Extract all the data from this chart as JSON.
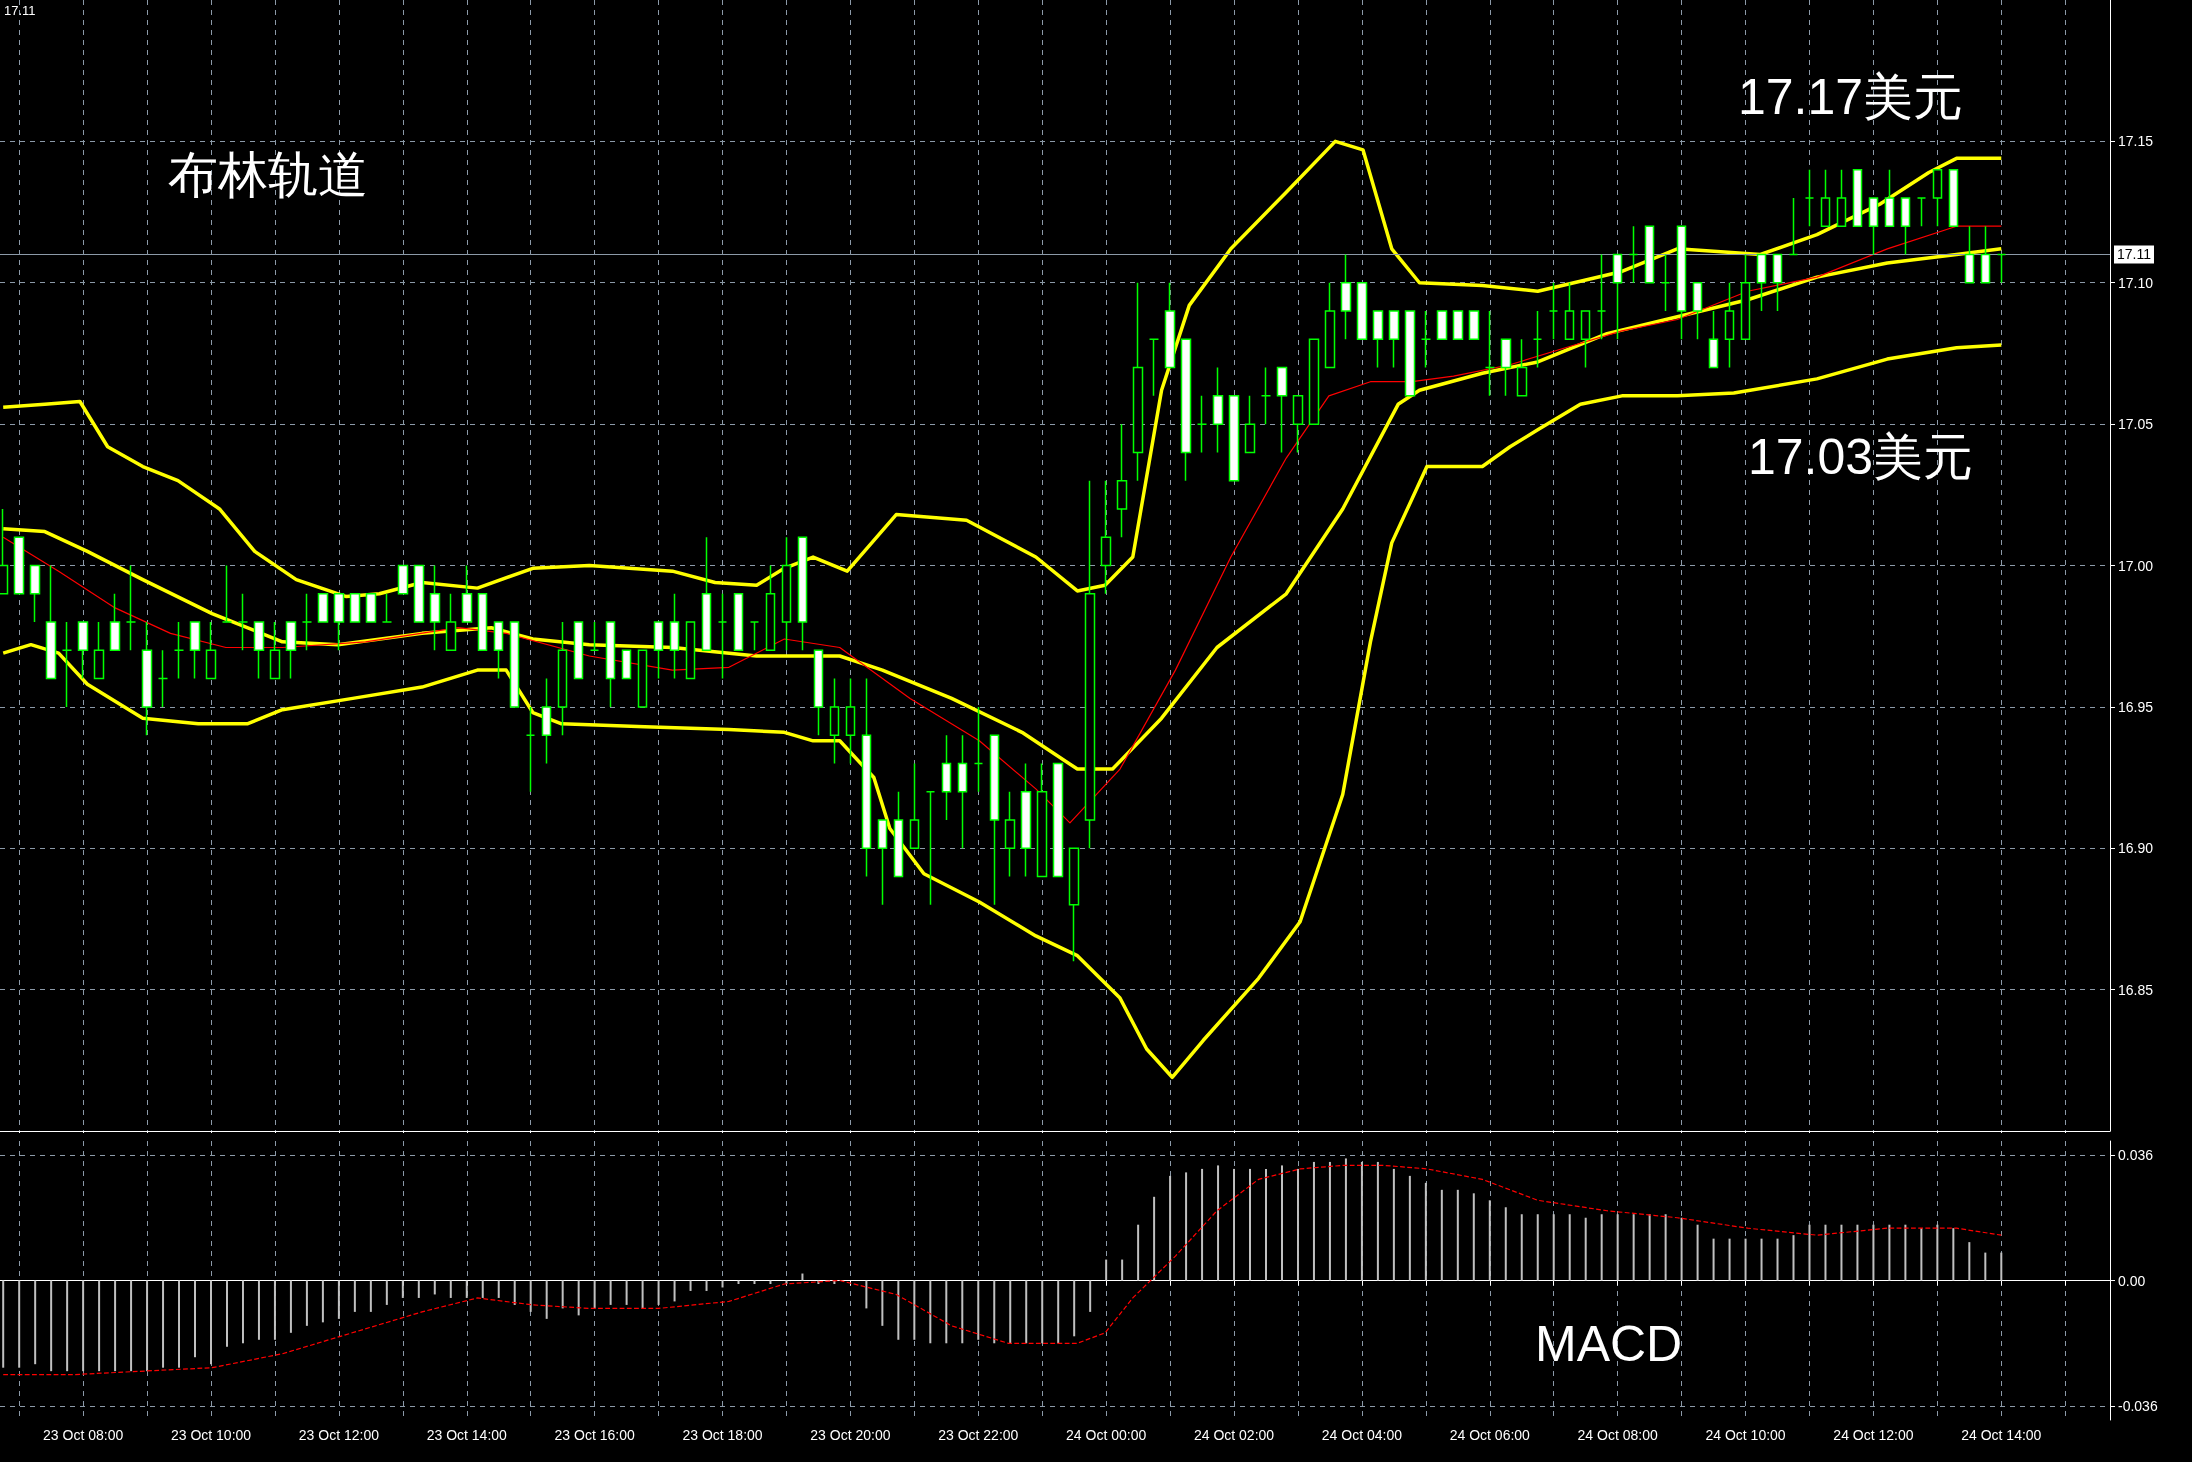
{
  "chart_data": [
    {
      "type": "candlestick",
      "color": "#00ff00",
      "x": [
        "--10-23T06:45",
        "--10-23T07:00",
        "--10-23T07:15",
        "--10-23T07:30",
        "--10-23T07:45",
        "--10-23T08:00",
        "--10-23T08:15",
        "--10-23T08:30",
        "--10-23T08:45",
        "--10-23T09:00",
        "--10-23T09:15",
        "--10-23T09:30",
        "--10-23T09:45",
        "--10-23T10:00",
        "--10-23T10:15",
        "--10-23T10:30",
        "--10-23T10:45",
        "--10-23T11:00",
        "--10-23T11:15",
        "--10-23T11:30",
        "--10-23T11:45",
        "--10-23T12:00",
        "--10-23T12:15",
        "--10-23T12:30",
        "--10-23T12:45",
        "--10-23T13:00",
        "--10-23T13:15",
        "--10-23T13:30",
        "--10-23T13:45",
        "--10-23T14:00",
        "--10-23T14:15",
        "--10-23T14:30",
        "--10-23T14:45",
        "--10-23T15:00",
        "--10-23T15:15",
        "--10-23T15:30",
        "--10-23T15:45",
        "--10-23T16:00",
        "--10-23T16:15",
        "--10-23T16:30",
        "--10-23T16:45",
        "--10-23T17:00",
        "--10-23T17:15",
        "--10-23T17:30",
        "--10-23T17:45",
        "--10-23T18:00",
        "--10-23T18:15",
        "--10-23T18:30",
        "--10-23T18:45",
        "--10-23T19:00",
        "--10-23T19:15",
        "--10-23T19:30",
        "--10-23T19:45",
        "--10-23T20:00",
        "--10-23T20:15",
        "--10-23T20:30",
        "--10-23T20:45",
        "--10-23T21:00",
        "--10-23T21:15",
        "--10-23T21:30",
        "--10-23T21:45",
        "--10-23T22:00",
        "--10-23T22:15",
        "--10-23T22:30",
        "--10-23T22:45",
        "--10-23T23:00",
        "--10-23T23:15",
        "--10-23T23:30",
        "--10-23T23:45",
        "--10-24T00:00",
        "--10-24T00:15",
        "--10-24T00:30",
        "--10-24T00:45",
        "--10-24T01:00",
        "--10-24T01:15",
        "--10-24T01:30",
        "--10-24T01:45",
        "--10-24T02:00",
        "--10-24T02:15",
        "--10-24T02:30",
        "--10-24T02:45",
        "--10-24T03:00",
        "--10-24T03:15",
        "--10-24T03:30",
        "--10-24T03:45",
        "--10-24T04:00",
        "--10-24T04:15",
        "--10-24T04:30",
        "--10-24T04:45",
        "--10-24T05:00",
        "--10-24T05:15",
        "--10-24T05:30",
        "--10-24T05:45",
        "--10-24T06:00",
        "--10-24T06:15",
        "--10-24T06:30",
        "--10-24T06:45",
        "--10-24T07:00",
        "--10-24T07:15",
        "--10-24T07:30",
        "--10-24T07:45",
        "--10-24T08:00",
        "--10-24T08:15",
        "--10-24T08:30",
        "--10-24T08:45",
        "--10-24T09:00",
        "--10-24T09:15",
        "--10-24T09:30",
        "--10-24T09:45",
        "--10-24T10:00",
        "--10-24T10:15",
        "--10-24T10:30",
        "--10-24T10:45",
        "--10-24T11:00",
        "--10-24T11:15",
        "--10-24T11:30",
        "--10-24T11:45",
        "--10-24T12:00",
        "--10-24T12:15",
        "--10-24T12:30",
        "--10-24T12:45",
        "--10-24T13:00",
        "--10-24T13:15",
        "--10-24T13:30",
        "--10-24T13:45",
        "--10-24T14:00"
      ],
      "ohlc": [
        [
          16.99,
          17.02,
          16.99,
          17.0
        ],
        [
          17.01,
          17.01,
          16.99,
          16.99
        ],
        [
          17.0,
          17.0,
          16.98,
          16.99
        ],
        [
          16.98,
          17.0,
          16.96,
          16.96
        ],
        [
          16.97,
          16.98,
          16.95,
          16.97
        ],
        [
          16.98,
          16.98,
          16.96,
          16.97
        ],
        [
          16.96,
          16.98,
          16.96,
          16.97
        ],
        [
          16.98,
          16.99,
          16.97,
          16.97
        ],
        [
          16.98,
          17.0,
          16.97,
          16.98
        ],
        [
          16.97,
          16.98,
          16.94,
          16.95
        ],
        [
          16.96,
          16.97,
          16.95,
          16.96
        ],
        [
          16.97,
          16.98,
          16.96,
          16.97
        ],
        [
          16.98,
          16.98,
          16.96,
          16.97
        ],
        [
          16.96,
          16.98,
          16.96,
          16.97
        ],
        [
          16.98,
          17.0,
          16.98,
          16.98
        ],
        [
          16.98,
          16.99,
          16.97,
          16.98
        ],
        [
          16.98,
          16.98,
          16.96,
          16.97
        ],
        [
          16.96,
          16.98,
          16.96,
          16.97
        ],
        [
          16.98,
          16.98,
          16.96,
          16.97
        ],
        [
          16.98,
          16.99,
          16.97,
          16.98
        ],
        [
          16.99,
          16.99,
          16.98,
          16.98
        ],
        [
          16.99,
          16.99,
          16.97,
          16.98
        ],
        [
          16.99,
          16.99,
          16.98,
          16.98
        ],
        [
          16.99,
          16.99,
          16.98,
          16.98
        ],
        [
          16.98,
          16.99,
          16.98,
          16.98
        ],
        [
          17.0,
          17.0,
          16.99,
          16.99
        ],
        [
          17.0,
          17.0,
          16.98,
          16.98
        ],
        [
          16.99,
          17.0,
          16.97,
          16.98
        ],
        [
          16.97,
          16.99,
          16.97,
          16.98
        ],
        [
          16.99,
          17.0,
          16.98,
          16.98
        ],
        [
          16.99,
          16.99,
          16.97,
          16.97
        ],
        [
          16.98,
          16.98,
          16.96,
          16.97
        ],
        [
          16.98,
          16.98,
          16.95,
          16.95
        ],
        [
          16.94,
          16.95,
          16.92,
          16.94
        ],
        [
          16.95,
          16.96,
          16.93,
          16.94
        ],
        [
          16.95,
          16.98,
          16.94,
          16.97
        ],
        [
          16.98,
          16.98,
          16.96,
          16.96
        ],
        [
          16.97,
          16.98,
          16.97,
          16.97
        ],
        [
          16.98,
          16.98,
          16.95,
          16.96
        ],
        [
          16.97,
          16.97,
          16.96,
          16.96
        ],
        [
          16.95,
          16.97,
          16.95,
          16.97
        ],
        [
          16.98,
          16.98,
          16.96,
          16.97
        ],
        [
          16.98,
          16.99,
          16.96,
          16.97
        ],
        [
          16.96,
          16.98,
          16.96,
          16.98
        ],
        [
          16.99,
          17.01,
          16.97,
          16.97
        ],
        [
          16.98,
          16.99,
          16.96,
          16.98
        ],
        [
          16.99,
          16.99,
          16.97,
          16.97
        ],
        [
          16.98,
          16.98,
          16.97,
          16.98
        ],
        [
          16.97,
          17.0,
          16.97,
          16.99
        ],
        [
          16.98,
          17.01,
          16.97,
          17.0
        ],
        [
          17.01,
          17.01,
          16.97,
          16.98
        ],
        [
          16.97,
          16.97,
          16.94,
          16.95
        ],
        [
          16.94,
          16.96,
          16.93,
          16.95
        ],
        [
          16.94,
          16.96,
          16.93,
          16.95
        ],
        [
          16.94,
          16.96,
          16.89,
          16.9
        ],
        [
          16.91,
          16.91,
          16.88,
          16.9
        ],
        [
          16.91,
          16.92,
          16.89,
          16.89
        ],
        [
          16.9,
          16.93,
          16.9,
          16.91
        ],
        [
          16.92,
          16.92,
          16.88,
          16.92
        ],
        [
          16.93,
          16.94,
          16.91,
          16.92
        ],
        [
          16.93,
          16.94,
          16.9,
          16.92
        ],
        [
          16.93,
          16.95,
          16.92,
          16.93
        ],
        [
          16.94,
          16.94,
          16.88,
          16.91
        ],
        [
          16.9,
          16.92,
          16.89,
          16.91
        ],
        [
          16.92,
          16.93,
          16.89,
          16.9
        ],
        [
          16.89,
          16.93,
          16.89,
          16.92
        ],
        [
          16.93,
          16.93,
          16.89,
          16.89
        ],
        [
          16.88,
          16.9,
          16.86,
          16.9
        ],
        [
          16.91,
          17.03,
          16.9,
          16.99
        ],
        [
          17.0,
          17.03,
          16.99,
          17.01
        ],
        [
          17.02,
          17.05,
          17.01,
          17.03
        ],
        [
          17.04,
          17.1,
          17.03,
          17.07
        ],
        [
          17.08,
          17.08,
          17.06,
          17.08
        ],
        [
          17.09,
          17.1,
          17.07,
          17.07
        ],
        [
          17.08,
          17.08,
          17.03,
          17.04
        ],
        [
          17.05,
          17.06,
          17.04,
          17.05
        ],
        [
          17.06,
          17.07,
          17.04,
          17.05
        ],
        [
          17.06,
          17.06,
          17.03,
          17.03
        ],
        [
          17.04,
          17.06,
          17.04,
          17.05
        ],
        [
          17.06,
          17.07,
          17.05,
          17.06
        ],
        [
          17.07,
          17.07,
          17.04,
          17.06
        ],
        [
          17.05,
          17.06,
          17.04,
          17.06
        ],
        [
          17.05,
          17.08,
          17.05,
          17.08
        ],
        [
          17.07,
          17.1,
          17.07,
          17.09
        ],
        [
          17.1,
          17.11,
          17.08,
          17.09
        ],
        [
          17.1,
          17.1,
          17.08,
          17.08
        ],
        [
          17.09,
          17.09,
          17.07,
          17.08
        ],
        [
          17.09,
          17.09,
          17.07,
          17.08
        ],
        [
          17.09,
          17.09,
          17.06,
          17.06
        ],
        [
          17.08,
          17.09,
          17.07,
          17.08
        ],
        [
          17.09,
          17.09,
          17.08,
          17.08
        ],
        [
          17.09,
          17.09,
          17.08,
          17.08
        ],
        [
          17.09,
          17.09,
          17.08,
          17.08
        ],
        [
          17.07,
          17.09,
          17.06,
          17.07
        ],
        [
          17.08,
          17.08,
          17.06,
          17.07
        ],
        [
          17.06,
          17.08,
          17.06,
          17.07
        ],
        [
          17.08,
          17.09,
          17.07,
          17.08
        ],
        [
          17.09,
          17.1,
          17.08,
          17.09
        ],
        [
          17.08,
          17.1,
          17.08,
          17.09
        ],
        [
          17.08,
          17.09,
          17.07,
          17.09
        ],
        [
          17.09,
          17.11,
          17.08,
          17.09
        ],
        [
          17.11,
          17.11,
          17.08,
          17.1
        ],
        [
          17.11,
          17.12,
          17.1,
          17.11
        ],
        [
          17.12,
          17.12,
          17.1,
          17.1
        ],
        [
          17.1,
          17.11,
          17.09,
          17.1
        ],
        [
          17.12,
          17.12,
          17.08,
          17.09
        ],
        [
          17.1,
          17.1,
          17.08,
          17.09
        ],
        [
          17.08,
          17.09,
          17.07,
          17.07
        ],
        [
          17.08,
          17.1,
          17.07,
          17.09
        ],
        [
          17.08,
          17.11,
          17.08,
          17.1
        ],
        [
          17.11,
          17.11,
          17.09,
          17.1
        ],
        [
          17.11,
          17.11,
          17.09,
          17.1
        ],
        [
          17.11,
          17.13,
          17.11,
          17.11
        ],
        [
          17.13,
          17.14,
          17.12,
          17.13
        ],
        [
          17.12,
          17.14,
          17.12,
          17.13
        ],
        [
          17.12,
          17.14,
          17.12,
          17.13
        ],
        [
          17.14,
          17.14,
          17.12,
          17.12
        ],
        [
          17.13,
          17.13,
          17.11,
          17.12
        ],
        [
          17.13,
          17.14,
          17.12,
          17.12
        ],
        [
          17.13,
          17.13,
          17.11,
          17.12
        ],
        [
          17.13,
          17.13,
          17.12,
          17.13
        ],
        [
          17.13,
          17.14,
          17.12,
          17.14
        ],
        [
          17.14,
          17.14,
          17.12,
          17.12
        ],
        [
          17.11,
          17.12,
          17.1,
          17.1
        ],
        [
          17.11,
          17.12,
          17.1,
          17.1
        ],
        [
          17.11,
          17.11,
          17.1,
          17.11
        ]
      ],
      "series": [
        {
          "type": "line",
          "color": "#ffff00",
          "x": [
            "--10-23T06:45",
            "--10-23T07:24",
            "--10-23T07:57",
            "--10-23T08:23",
            "--10-23T08:56",
            "--10-23T09:29",
            "--10-23T10:08",
            "--10-23T10:41",
            "--10-23T11:20",
            "--10-23T12:07",
            "--10-23T12:38",
            "--10-23T13:18",
            "--10-23T14:10",
            "--10-23T15:02",
            "--10-23T15:55",
            "--10-23T17:13",
            "--10-23T17:53",
            "--10-23T18:32",
            "--10-23T18:58",
            "--10-23T19:25",
            "--10-23T19:57",
            "--10-23T20:43",
            "--10-23T21:49",
            "--10-23T22:54",
            "--10-23T23:33",
            "--10-23T23:59",
            "--10-24T00:25",
            "--10-24T00:52",
            "--10-24T01:18",
            "--10-24T01:57",
            "--10-24T02:49",
            "--10-24T03:35",
            "--10-24T04:01",
            "--10-24T04:28",
            "--10-24T04:54",
            "--10-24T05:53",
            "--10-24T06:45",
            "--10-24T08:04",
            "--10-24T08:56",
            "--10-24T10:14",
            "--10-24T11:07",
            "--10-24T12:07",
            "--10-24T12:52",
            "--10-24T13:18",
            "--10-24T14:00"
          ],
          "values": [
            17.056,
            17.057,
            17.058,
            17.042,
            17.035,
            17.03,
            17.02,
            17.005,
            16.995,
            16.989,
            16.99,
            16.994,
            16.992,
            16.999,
            17.0,
            16.998,
            16.994,
            16.993,
            16.999,
            17.003,
            16.998,
            17.018,
            17.016,
            17.003,
            16.991,
            16.993,
            17.003,
            17.062,
            17.092,
            17.112,
            17.132,
            17.15,
            17.147,
            17.112,
            17.1,
            17.099,
            17.097,
            17.104,
            17.112,
            17.11,
            17.117,
            17.128,
            17.139,
            17.144,
            17.144
          ]
        },
        {
          "type": "line",
          "color": "#ffff00",
          "x": [
            "--10-23T06:45",
            "--10-23T07:24",
            "--10-23T08:04",
            "--10-23T08:56",
            "--10-23T10:01",
            "--10-23T11:07",
            "--10-23T11:59",
            "--10-23T13:18",
            "--10-23T14:23",
            "--10-23T15:02",
            "--10-23T15:55",
            "--10-23T17:13",
            "--10-23T18:32",
            "--10-23T19:50",
            "--10-23T20:30",
            "--10-23T21:35",
            "--10-23T22:41",
            "--10-23T23:33",
            "--10-24T00:06",
            "--10-24T00:52",
            "--10-24T01:44",
            "--10-24T02:49",
            "--10-24T03:42",
            "--10-24T04:34",
            "--10-24T04:54",
            "--10-24T05:53",
            "--10-24T06:45",
            "--10-24T07:50",
            "--10-24T08:56",
            "--10-24T10:02",
            "--10-24T11:07",
            "--10-24T12:13",
            "--10-24T13:18",
            "--10-24T14:00"
          ],
          "values": [
            17.013,
            17.012,
            17.005,
            16.995,
            16.983,
            16.973,
            16.972,
            16.976,
            16.978,
            16.974,
            16.972,
            16.971,
            16.968,
            16.968,
            16.963,
            16.953,
            16.941,
            16.928,
            16.928,
            16.946,
            16.971,
            16.99,
            17.02,
            17.057,
            17.062,
            17.068,
            17.072,
            17.082,
            17.088,
            17.094,
            17.102,
            17.107,
            17.11,
            17.112
          ]
        },
        {
          "type": "line",
          "color": "#ffff00",
          "x": [
            "--10-23T06:45",
            "--10-23T07:11",
            "--10-23T07:37",
            "--10-23T08:04",
            "--10-23T08:56",
            "--10-23T09:48",
            "--10-23T10:34",
            "--10-23T11:07",
            "--10-23T12:13",
            "--10-23T13:18",
            "--10-23T14:10",
            "--10-23T14:37",
            "--10-23T15:02",
            "--10-23T15:29",
            "--10-23T16:47",
            "--10-23T18:06",
            "--10-23T18:58",
            "--10-23T19:25",
            "--10-23T19:50",
            "--10-23T20:22",
            "--10-23T20:37",
            "--10-23T21:09",
            "--10-23T22:01",
            "--10-23T22:54",
            "--10-23T23:33",
            "--10-24T00:13",
            "--10-24T00:38",
            "--10-24T01:02",
            "--10-24T01:31",
            "--10-24T02:23",
            "--10-24T03:02",
            "--10-24T03:42",
            "--10-24T04:08",
            "--10-24T04:28",
            "--10-24T05:01",
            "--10-24T05:53",
            "--10-24T06:19",
            "--10-24T06:45",
            "--10-24T07:25",
            "--10-24T08:04",
            "--10-24T08:56",
            "--10-24T09:49",
            "--10-24T11:07",
            "--10-24T12:13",
            "--10-24T13:18",
            "--10-24T14:00"
          ],
          "values": [
            16.969,
            16.972,
            16.969,
            16.958,
            16.946,
            16.944,
            16.944,
            16.949,
            16.953,
            16.957,
            16.963,
            16.963,
            16.948,
            16.944,
            16.943,
            16.942,
            16.941,
            16.938,
            16.938,
            16.925,
            16.907,
            16.891,
            16.881,
            16.869,
            16.862,
            16.847,
            16.829,
            16.819,
            16.832,
            16.854,
            16.874,
            16.919,
            16.973,
            17.008,
            17.035,
            17.035,
            17.042,
            17.048,
            17.057,
            17.06,
            17.06,
            17.061,
            17.066,
            17.073,
            17.077,
            17.078
          ]
        },
        {
          "type": "line",
          "color": "#ff0000",
          "x": [
            "--10-23T06:45",
            "--10-23T07:37",
            "--10-23T08:30",
            "--10-23T09:22",
            "--10-23T10:14",
            "--10-23T11:07",
            "--10-23T12:25",
            "--10-23T13:52",
            "--10-23T14:37",
            "--10-23T15:55",
            "--10-23T17:13",
            "--10-23T18:06",
            "--10-23T18:58",
            "--10-23T19:50",
            "--10-23T20:56",
            "--10-23T22:01",
            "--10-23T22:54",
            "--10-23T23:26",
            "--10-24T00:13",
            "--10-24T01:05",
            "--10-24T01:57",
            "--10-24T02:49",
            "--10-24T03:29",
            "--10-24T04:08",
            "--10-24T04:47",
            "--10-24T05:26",
            "--10-24T06:19",
            "--10-24T07:11",
            "--10-24T08:04",
            "--10-24T08:56",
            "--10-24T10:02",
            "--10-24T11:07",
            "--10-24T12:13",
            "--10-24T13:18",
            "--10-24T14:00"
          ],
          "values": [
            17.01,
            16.998,
            16.985,
            16.976,
            16.971,
            16.971,
            16.973,
            16.978,
            16.976,
            16.968,
            16.963,
            16.964,
            16.974,
            16.971,
            16.953,
            16.938,
            16.921,
            16.909,
            16.928,
            16.963,
            17.003,
            17.038,
            17.06,
            17.065,
            17.065,
            17.067,
            17.071,
            17.077,
            17.083,
            17.087,
            17.097,
            17.102,
            17.112,
            17.12,
            17.12
          ]
        }
      ],
      "xlim": [
        "--10-23T06:42",
        "--10-24T15:42"
      ],
      "ylim": [
        16.8,
        17.2
      ],
      "xticks": [
        {
          "value": "--10-23T07:00",
          "label": null
        },
        {
          "value": "--10-23T08:00",
          "label": "23 Oct 08:00"
        },
        {
          "value": "--10-23T09:00",
          "label": null
        },
        {
          "value": "--10-23T10:00",
          "label": "23 Oct 10:00"
        },
        {
          "value": "--10-23T11:00",
          "label": null
        },
        {
          "value": "--10-23T12:00",
          "label": "23 Oct 12:00"
        },
        {
          "value": "--10-23T13:00",
          "label": null
        },
        {
          "value": "--10-23T14:00",
          "label": "23 Oct 14:00"
        },
        {
          "value": "--10-23T15:00",
          "label": null
        },
        {
          "value": "--10-23T16:00",
          "label": "23 Oct 16:00"
        },
        {
          "value": "--10-23T17:00",
          "label": null
        },
        {
          "value": "--10-23T18:00",
          "label": "23 Oct 18:00"
        },
        {
          "value": "--10-23T19:00",
          "label": null
        },
        {
          "value": "--10-23T20:00",
          "label": "23 Oct 20:00"
        },
        {
          "value": "--10-23T21:00",
          "label": null
        },
        {
          "value": "--10-23T22:00",
          "label": "23 Oct 22:00"
        },
        {
          "value": "--10-23T23:00",
          "label": null
        },
        {
          "value": "--10-24T00:00",
          "label": "24 Oct 00:00"
        },
        {
          "value": "--10-24T01:00",
          "label": null
        },
        {
          "value": "--10-24T02:00",
          "label": "24 Oct 02:00"
        },
        {
          "value": "--10-24T03:00",
          "label": null
        },
        {
          "value": "--10-24T04:00",
          "label": "24 Oct 04:00"
        },
        {
          "value": "--10-24T05:00",
          "label": null
        },
        {
          "value": "--10-24T06:00",
          "label": "24 Oct 06:00"
        },
        {
          "value": "--10-24T07:00",
          "label": null
        },
        {
          "value": "--10-24T08:00",
          "label": "24 Oct 08:00"
        },
        {
          "value": "--10-24T09:00",
          "label": null
        },
        {
          "value": "--10-24T10:00",
          "label": "24 Oct 10:00"
        },
        {
          "value": "--10-24T11:00",
          "label": null
        },
        {
          "value": "--10-24T12:00",
          "label": "24 Oct 12:00"
        },
        {
          "value": "--10-24T13:00",
          "label": null
        },
        {
          "value": "--10-24T14:00",
          "label": "24 Oct 14:00"
        },
        {
          "value": "--10-24T15:00",
          "label": null
        }
      ],
      "yticks": [
        {
          "value": 16.85,
          "label": "16.85"
        },
        {
          "value": 16.9,
          "label": "16.90"
        },
        {
          "value": 16.95,
          "label": "16.95"
        },
        {
          "value": 17.0,
          "label": "17.00"
        },
        {
          "value": 17.05,
          "label": "17.05"
        },
        {
          "value": 17.1,
          "label": "17.10"
        },
        {
          "value": 17.15,
          "label": "17.15"
        }
      ],
      "tick_labels": "y",
      "grid": true,
      "marker": "none",
      "line_style": "solid",
      "ref_lines": [
        {
          "axis": "y",
          "value": 17.11,
          "label": "17.11",
          "color": "#8c9aa8"
        }
      ],
      "annotations": [
        "17.11",
        "布林轨道",
        "17.17美元",
        "17.03美元"
      ]
    },
    {
      "type": "bar",
      "x": [
        "--10-23T06:45",
        "--10-23T07:00",
        "--10-23T07:15",
        "--10-23T07:30",
        "--10-23T07:45",
        "--10-23T08:00",
        "--10-23T08:15",
        "--10-23T08:30",
        "--10-23T08:45",
        "--10-23T09:00",
        "--10-23T09:15",
        "--10-23T09:30",
        "--10-23T09:45",
        "--10-23T10:00",
        "--10-23T10:15",
        "--10-23T10:30",
        "--10-23T10:45",
        "--10-23T11:00",
        "--10-23T11:15",
        "--10-23T11:30",
        "--10-23T11:45",
        "--10-23T12:00",
        "--10-23T12:15",
        "--10-23T12:30",
        "--10-23T12:45",
        "--10-23T13:00",
        "--10-23T13:15",
        "--10-23T13:30",
        "--10-23T13:45",
        "--10-23T14:00",
        "--10-23T14:15",
        "--10-23T14:30",
        "--10-23T14:45",
        "--10-23T15:00",
        "--10-23T15:15",
        "--10-23T15:30",
        "--10-23T15:45",
        "--10-23T16:00",
        "--10-23T16:15",
        "--10-23T16:30",
        "--10-23T16:45",
        "--10-23T17:00",
        "--10-23T17:15",
        "--10-23T17:30",
        "--10-23T17:45",
        "--10-23T18:00",
        "--10-23T18:15",
        "--10-23T18:30",
        "--10-23T18:45",
        "--10-23T19:00",
        "--10-23T19:15",
        "--10-23T19:30",
        "--10-23T19:45",
        "--10-23T20:00",
        "--10-23T20:15",
        "--10-23T20:30",
        "--10-23T20:45",
        "--10-23T21:00",
        "--10-23T21:15",
        "--10-23T21:30",
        "--10-23T21:45",
        "--10-23T22:00",
        "--10-23T22:15",
        "--10-23T22:30",
        "--10-23T22:45",
        "--10-23T23:00",
        "--10-23T23:15",
        "--10-23T23:30",
        "--10-23T23:45",
        "--10-24T00:00",
        "--10-24T00:15",
        "--10-24T00:30",
        "--10-24T00:45",
        "--10-24T01:00",
        "--10-24T01:15",
        "--10-24T01:30",
        "--10-24T01:45",
        "--10-24T02:00",
        "--10-24T02:15",
        "--10-24T02:30",
        "--10-24T02:45",
        "--10-24T03:00",
        "--10-24T03:15",
        "--10-24T03:30",
        "--10-24T03:45",
        "--10-24T04:00",
        "--10-24T04:15",
        "--10-24T04:30",
        "--10-24T04:45",
        "--10-24T05:00",
        "--10-24T05:15",
        "--10-24T05:30",
        "--10-24T05:45",
        "--10-24T06:00",
        "--10-24T06:15",
        "--10-24T06:30",
        "--10-24T06:45",
        "--10-24T07:00",
        "--10-24T07:15",
        "--10-24T07:30",
        "--10-24T07:45",
        "--10-24T08:00",
        "--10-24T08:15",
        "--10-24T08:30",
        "--10-24T08:45",
        "--10-24T09:00",
        "--10-24T09:15",
        "--10-24T09:30",
        "--10-24T09:45",
        "--10-24T10:00",
        "--10-24T10:15",
        "--10-24T10:30",
        "--10-24T10:45",
        "--10-24T11:00",
        "--10-24T11:15",
        "--10-24T11:30",
        "--10-24T11:45",
        "--10-24T12:00",
        "--10-24T12:15",
        "--10-24T12:30",
        "--10-24T12:45",
        "--10-24T13:00",
        "--10-24T13:15",
        "--10-24T13:30",
        "--10-24T13:45",
        "--10-24T14:00"
      ],
      "series": [
        {
          "color": "#c0c0c0",
          "values": [
            -0.025,
            -0.025,
            -0.024,
            -0.026,
            -0.026,
            -0.026,
            -0.026,
            -0.026,
            -0.026,
            -0.026,
            -0.025,
            -0.025,
            -0.022,
            -0.024,
            -0.019,
            -0.018,
            -0.017,
            -0.017,
            -0.015,
            -0.013,
            -0.012,
            -0.011,
            -0.009,
            -0.009,
            -0.007,
            -0.005,
            -0.005,
            -0.004,
            -0.005,
            -0.005,
            -0.005,
            -0.005,
            -0.007,
            -0.009,
            -0.011,
            -0.008,
            -0.01,
            -0.008,
            -0.007,
            -0.007,
            -0.008,
            -0.007,
            -0.006,
            -0.003,
            -0.003,
            -0.002,
            -0.001,
            -0.001,
            -0.001,
            -0.001,
            0.002,
            -0.001,
            -0.001,
            null,
            -0.008,
            -0.013,
            -0.017,
            -0.017,
            -0.018,
            -0.018,
            -0.018,
            -0.017,
            -0.018,
            -0.018,
            -0.018,
            -0.018,
            -0.018,
            -0.016,
            -0.009,
            0.006,
            0.006,
            0.016,
            0.024,
            0.03,
            0.031,
            0.032,
            0.033,
            0.032,
            0.032,
            0.032,
            0.033,
            0.032,
            0.034,
            0.034,
            0.035,
            0.034,
            0.034,
            0.032,
            0.03,
            0.028,
            0.026,
            0.026,
            0.025,
            0.023,
            0.021,
            0.019,
            0.019,
            0.019,
            0.019,
            0.018,
            0.019,
            0.019,
            0.019,
            0.019,
            0.019,
            0.018,
            0.016,
            0.012,
            0.012,
            0.012,
            0.012,
            0.012,
            0.013,
            0.016,
            0.016,
            0.016,
            0.016,
            0.016,
            0.016,
            0.016,
            0.015,
            0.016,
            0.015,
            0.011,
            0.008,
            0.008
          ]
        },
        {
          "type": "line",
          "color": "#ff0000",
          "line_style": "dashed",
          "x": [
            "--10-23T06:45",
            "--10-23T07:50",
            "--10-23T10:01",
            "--10-23T11:07",
            "--10-23T13:18",
            "--10-23T14:10",
            "--10-23T15:02",
            "--10-23T15:55",
            "--10-23T17:00",
            "--10-23T18:06",
            "--10-23T18:58",
            "--10-23T19:50",
            "--10-23T20:43",
            "--10-23T21:35",
            "--10-23T22:28",
            "--10-23T23:33",
            "--10-23T23:59",
            "--10-24T00:25",
            "--10-24T01:05",
            "--10-24T01:44",
            "--10-24T02:23",
            "--10-24T03:02",
            "--10-24T03:42",
            "--10-24T04:21",
            "--10-24T05:01",
            "--10-24T05:53",
            "--10-24T06:45",
            "--10-24T07:50",
            "--10-24T08:56",
            "--10-24T10:02",
            "--10-24T11:07",
            "--10-24T12:13",
            "--10-24T13:18",
            "--10-24T14:00"
          ],
          "values": [
            -0.027,
            -0.027,
            -0.025,
            -0.021,
            -0.009,
            -0.005,
            -0.007,
            -0.008,
            -0.008,
            -0.006,
            -0.001,
            0.0,
            -0.004,
            -0.013,
            -0.018,
            -0.018,
            -0.015,
            -0.005,
            0.007,
            0.02,
            0.029,
            0.032,
            0.033,
            0.033,
            0.032,
            0.029,
            0.023,
            0.02,
            0.018,
            0.015,
            0.013,
            0.015,
            0.015,
            0.013
          ]
        }
      ],
      "xlim": [
        "--10-23T06:42",
        "--10-24T15:42"
      ],
      "ylim": [
        -0.04,
        0.04
      ],
      "xticks": [
        {
          "value": "--10-23T07:00",
          "label": null
        },
        {
          "value": "--10-23T08:00",
          "label": "23 Oct 08:00"
        },
        {
          "value": "--10-23T09:00",
          "label": null
        },
        {
          "value": "--10-23T10:00",
          "label": "23 Oct 10:00"
        },
        {
          "value": "--10-23T11:00",
          "label": null
        },
        {
          "value": "--10-23T12:00",
          "label": "23 Oct 12:00"
        },
        {
          "value": "--10-23T13:00",
          "label": null
        },
        {
          "value": "--10-23T14:00",
          "label": "23 Oct 14:00"
        },
        {
          "value": "--10-23T15:00",
          "label": null
        },
        {
          "value": "--10-23T16:00",
          "label": "23 Oct 16:00"
        },
        {
          "value": "--10-23T17:00",
          "label": null
        },
        {
          "value": "--10-23T18:00",
          "label": "23 Oct 18:00"
        },
        {
          "value": "--10-23T19:00",
          "label": null
        },
        {
          "value": "--10-23T20:00",
          "label": "23 Oct 20:00"
        },
        {
          "value": "--10-23T21:00",
          "label": null
        },
        {
          "value": "--10-23T22:00",
          "label": "23 Oct 22:00"
        },
        {
          "value": "--10-23T23:00",
          "label": null
        },
        {
          "value": "--10-24T00:00",
          "label": "24 Oct 00:00"
        },
        {
          "value": "--10-24T01:00",
          "label": null
        },
        {
          "value": "--10-24T02:00",
          "label": "24 Oct 02:00"
        },
        {
          "value": "--10-24T03:00",
          "label": null
        },
        {
          "value": "--10-24T04:00",
          "label": "24 Oct 04:00"
        },
        {
          "value": "--10-24T05:00",
          "label": null
        },
        {
          "value": "--10-24T06:00",
          "label": "24 Oct 06:00"
        },
        {
          "value": "--10-24T07:00",
          "label": null
        },
        {
          "value": "--10-24T08:00",
          "label": "24 Oct 08:00"
        },
        {
          "value": "--10-24T09:00",
          "label": null
        },
        {
          "value": "--10-24T10:00",
          "label": "24 Oct 10:00"
        },
        {
          "value": "--10-24T11:00",
          "label": null
        },
        {
          "value": "--10-24T12:00",
          "label": "24 Oct 12:00"
        },
        {
          "value": "--10-24T13:00",
          "label": null
        },
        {
          "value": "--10-24T14:00",
          "label": "24 Oct 14:00"
        },
        {
          "value": "--10-24T15:00",
          "label": null
        }
      ],
      "yticks": [
        -0.036,
        {
          "value": 0,
          "label": "0.00"
        },
        0.036
      ],
      "grid": true,
      "marker": "none",
      "annotations": [
        "MACD"
      ]
    }
  ]
}
